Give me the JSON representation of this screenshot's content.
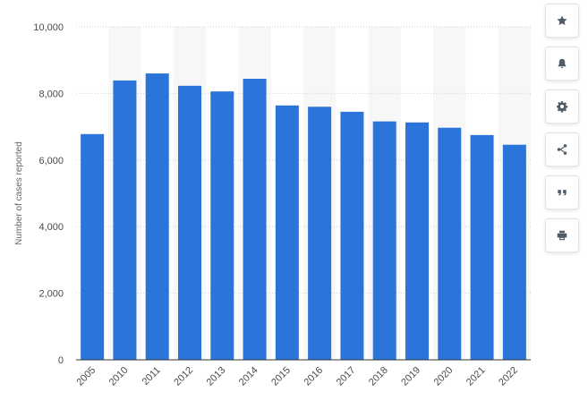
{
  "chart_data": {
    "type": "bar",
    "title": "",
    "xlabel": "",
    "ylabel": "Number of cases reported",
    "categories": [
      "2005",
      "2010",
      "2011",
      "2012",
      "2013",
      "2014",
      "2015",
      "2016",
      "2017",
      "2018",
      "2019",
      "2020",
      "2021",
      "2022"
    ],
    "values": [
      6780,
      8390,
      8600,
      8230,
      8060,
      8440,
      7640,
      7600,
      7450,
      7160,
      7130,
      6970,
      6750,
      6460
    ],
    "ylim": [
      0,
      10000
    ],
    "yticks": [
      0,
      2000,
      4000,
      6000,
      8000,
      10000
    ],
    "ytick_labels": [
      "0",
      "2,000",
      "4,000",
      "6,000",
      "8,000",
      "10,000"
    ],
    "bar_color": "#2b74d9",
    "grid": true,
    "legend": "none"
  },
  "toolbar": {
    "buttons": [
      {
        "id": "favorite",
        "icon": "star-icon"
      },
      {
        "id": "notification",
        "icon": "bell-icon"
      },
      {
        "id": "settings",
        "icon": "gear-icon"
      },
      {
        "id": "share",
        "icon": "share-icon"
      },
      {
        "id": "cite",
        "icon": "quote-icon"
      },
      {
        "id": "print",
        "icon": "print-icon"
      }
    ]
  }
}
